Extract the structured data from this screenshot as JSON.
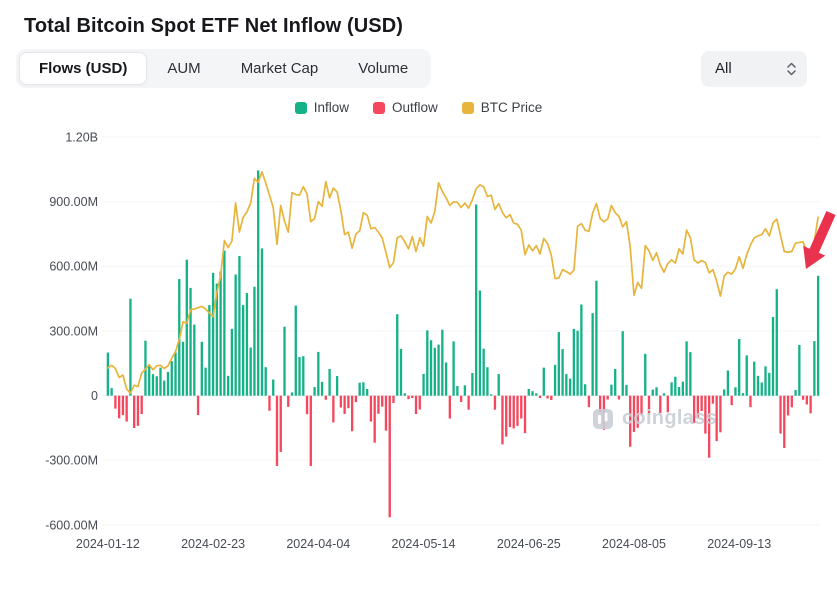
{
  "title": "Total Bitcoin Spot ETF Net Inflow (USD)",
  "tabs": [
    {
      "label": "Flows (USD)",
      "active": true
    },
    {
      "label": "AUM",
      "active": false
    },
    {
      "label": "Market Cap",
      "active": false
    },
    {
      "label": "Volume",
      "active": false
    }
  ],
  "filter": {
    "value": "All"
  },
  "legend": [
    {
      "label": "Inflow",
      "color": "#16b287"
    },
    {
      "label": "Outflow",
      "color": "#f5475d"
    },
    {
      "label": "BTC Price",
      "color": "#e7b43c"
    }
  ],
  "watermark": "coinglass",
  "chart_data": {
    "type": "bar+line",
    "title": "Total Bitcoin Spot ETF Net Inflow (USD)",
    "legend_position": "top",
    "grid": "horizontal-faint",
    "y_axis": {
      "unit": "USD",
      "min": -600,
      "max": 1200,
      "tick_values": [
        1200,
        900,
        600,
        300,
        0,
        -300,
        -600
      ],
      "ticks": [
        "1.20B",
        "900.00M",
        "600.00M",
        "300.00M",
        "0",
        "-300.00M",
        "-600.00M"
      ]
    },
    "x_axis": {
      "tick_labels": [
        "2024-01-12",
        "2024-02-23",
        "2024-04-04",
        "2024-05-14",
        "2024-06-25",
        "2024-08-05",
        "2024-09-13"
      ],
      "tick_indices": [
        0,
        28,
        56,
        84,
        112,
        140,
        168
      ]
    },
    "dates": [
      "2024-01-12",
      "2024-01-16",
      "2024-01-17",
      "2024-01-18",
      "2024-01-19",
      "2024-01-22",
      "2024-01-23",
      "2024-01-24",
      "2024-01-25",
      "2024-01-26",
      "2024-01-29",
      "2024-01-30",
      "2024-01-31",
      "2024-02-01",
      "2024-02-02",
      "2024-02-05",
      "2024-02-06",
      "2024-02-07",
      "2024-02-08",
      "2024-02-09",
      "2024-02-12",
      "2024-02-13",
      "2024-02-14",
      "2024-02-15",
      "2024-02-16",
      "2024-02-20",
      "2024-02-21",
      "2024-02-22",
      "2024-02-23",
      "2024-02-26",
      "2024-02-27",
      "2024-02-28",
      "2024-02-29",
      "2024-03-01",
      "2024-03-04",
      "2024-03-05",
      "2024-03-06",
      "2024-03-07",
      "2024-03-08",
      "2024-03-11",
      "2024-03-12",
      "2024-03-13",
      "2024-03-14",
      "2024-03-15",
      "2024-03-18",
      "2024-03-19",
      "2024-03-20",
      "2024-03-21",
      "2024-03-22",
      "2024-03-25",
      "2024-03-26",
      "2024-03-27",
      "2024-03-28",
      "2024-04-01",
      "2024-04-02",
      "2024-04-03",
      "2024-04-04",
      "2024-04-05",
      "2024-04-08",
      "2024-04-09",
      "2024-04-10",
      "2024-04-11",
      "2024-04-12",
      "2024-04-15",
      "2024-04-16",
      "2024-04-17",
      "2024-04-18",
      "2024-04-19",
      "2024-04-22",
      "2024-04-23",
      "2024-04-24",
      "2024-04-25",
      "2024-04-26",
      "2024-04-29",
      "2024-04-30",
      "2024-05-01",
      "2024-05-02",
      "2024-05-03",
      "2024-05-06",
      "2024-05-07",
      "2024-05-08",
      "2024-05-09",
      "2024-05-10",
      "2024-05-13",
      "2024-05-14",
      "2024-05-15",
      "2024-05-16",
      "2024-05-17",
      "2024-05-20",
      "2024-05-21",
      "2024-05-22",
      "2024-05-23",
      "2024-05-24",
      "2024-05-28",
      "2024-05-29",
      "2024-05-30",
      "2024-05-31",
      "2024-06-03",
      "2024-06-04",
      "2024-06-05",
      "2024-06-06",
      "2024-06-07",
      "2024-06-10",
      "2024-06-11",
      "2024-06-12",
      "2024-06-13",
      "2024-06-14",
      "2024-06-17",
      "2024-06-18",
      "2024-06-20",
      "2024-06-21",
      "2024-06-24",
      "2024-06-25",
      "2024-06-26",
      "2024-06-27",
      "2024-06-28",
      "2024-07-01",
      "2024-07-02",
      "2024-07-03",
      "2024-07-05",
      "2024-07-08",
      "2024-07-09",
      "2024-07-10",
      "2024-07-11",
      "2024-07-12",
      "2024-07-15",
      "2024-07-16",
      "2024-07-17",
      "2024-07-18",
      "2024-07-19",
      "2024-07-22",
      "2024-07-23",
      "2024-07-24",
      "2024-07-25",
      "2024-07-26",
      "2024-07-29",
      "2024-07-30",
      "2024-07-31",
      "2024-08-01",
      "2024-08-02",
      "2024-08-05",
      "2024-08-06",
      "2024-08-07",
      "2024-08-08",
      "2024-08-09",
      "2024-08-12",
      "2024-08-13",
      "2024-08-14",
      "2024-08-15",
      "2024-08-16",
      "2024-08-19",
      "2024-08-20",
      "2024-08-21",
      "2024-08-22",
      "2024-08-23",
      "2024-08-26",
      "2024-08-27",
      "2024-08-28",
      "2024-08-29",
      "2024-08-30",
      "2024-09-03",
      "2024-09-04",
      "2024-09-05",
      "2024-09-06",
      "2024-09-09",
      "2024-09-10",
      "2024-09-11",
      "2024-09-12",
      "2024-09-13",
      "2024-09-16",
      "2024-09-17",
      "2024-09-18",
      "2024-09-19",
      "2024-09-20",
      "2024-09-23",
      "2024-09-24",
      "2024-09-25",
      "2024-09-26",
      "2024-09-27",
      "2024-09-30",
      "2024-10-01",
      "2024-10-02",
      "2024-10-03",
      "2024-10-04",
      "2024-10-07",
      "2024-10-08",
      "2024-10-09",
      "2024-10-10",
      "2024-10-11",
      "2024-10-14"
    ],
    "series": [
      {
        "name": "Net Flow",
        "type": "bar",
        "unit": "USD millions",
        "positive_label": "Inflow",
        "negative_label": "Outflow",
        "positive_color": "#16b287",
        "negative_color": "#f5475d",
        "values": [
          200,
          35,
          -60,
          -105,
          -90,
          -120,
          450,
          -150,
          -140,
          -85,
          255,
          145,
          100,
          90,
          130,
          70,
          110,
          160,
          200,
          541,
          250,
          631,
          500,
          330,
          -90,
          250,
          130,
          420,
          570,
          520,
          576,
          673,
          92,
          310,
          562,
          648,
          420,
          476,
          223,
          505,
          1045,
          683,
          132,
          -70,
          75,
          -326,
          -261,
          320,
          -52,
          15,
          418,
          179,
          183,
          -86,
          -326,
          40,
          203,
          64,
          -19,
          124,
          -124,
          91,
          -55,
          -85,
          -58,
          -165,
          -30,
          60,
          62,
          31,
          -120,
          -218,
          -84,
          -51,
          -162,
          -564,
          -34,
          378,
          217,
          11,
          -16,
          -11,
          -85,
          -64,
          101,
          303,
          257,
          222,
          237,
          306,
          154,
          -106,
          252,
          45,
          -29,
          48,
          -65,
          105,
          887,
          488,
          218,
          132,
          6,
          -65,
          100,
          -226,
          -190,
          -146,
          -152,
          -140,
          -106,
          -174,
          31,
          21,
          11,
          -11,
          130,
          -13,
          -20,
          143,
          295,
          216,
          100,
          79,
          310,
          301,
          423,
          53,
          -53,
          383,
          533,
          -78,
          -158,
          -18,
          51,
          124,
          -18,
          299,
          50,
          -237,
          -168,
          -149,
          -91,
          194,
          -89,
          28,
          39,
          -81,
          11,
          -77,
          62,
          88,
          40,
          65,
          252,
          202,
          -127,
          -105,
          -71,
          -176,
          -288,
          -37,
          -211,
          -170,
          29,
          117,
          -44,
          39,
          263,
          12,
          187,
          -53,
          158,
          92,
          61,
          136,
          106,
          365,
          494,
          -176,
          -243,
          -92,
          -54,
          26,
          235,
          -19,
          -41,
          -82,
          253,
          556
        ]
      },
      {
        "name": "BTC Price",
        "type": "line",
        "unit": "USD thousands",
        "color": "#e7b43c",
        "values": [
          42.8,
          43.2,
          42.7,
          41.3,
          41.7,
          39.5,
          38.9,
          40.1,
          39.9,
          42.0,
          42.6,
          43.3,
          42.5,
          43.1,
          43.2,
          42.7,
          43.1,
          44.3,
          45.3,
          47.2,
          49.9,
          49.7,
          51.8,
          51.9,
          52.1,
          52.3,
          51.9,
          51.3,
          50.7,
          54.5,
          57.0,
          62.5,
          61.4,
          62.4,
          68.3,
          63.8,
          66.1,
          66.9,
          68.3,
          72.1,
          71.5,
          73.1,
          71.4,
          69.5,
          67.6,
          61.9,
          67.9,
          65.5,
          63.8,
          69.9,
          69.6,
          69.5,
          70.8,
          69.7,
          65.4,
          65.9,
          68.5,
          67.8,
          71.6,
          69.1,
          70.6,
          70.0,
          67.1,
          63.4,
          63.8,
          61.3,
          63.5,
          64.0,
          66.8,
          66.4,
          64.3,
          64.5,
          63.8,
          62.9,
          60.6,
          58.3,
          59.1,
          62.9,
          63.2,
          62.3,
          61.2,
          63.1,
          60.8,
          62.9,
          61.6,
          66.2,
          65.2,
          67.0,
          71.4,
          70.1,
          69.1,
          67.9,
          68.5,
          68.4,
          67.6,
          68.3,
          67.5,
          68.8,
          70.5,
          71.1,
          70.8,
          69.3,
          69.5,
          67.3,
          68.2,
          66.8,
          66.0,
          66.5,
          65.2,
          65.0,
          64.1,
          60.3,
          61.8,
          60.9,
          61.7,
          60.4,
          62.8,
          62.0,
          60.2,
          56.6,
          56.7,
          58.0,
          57.7,
          57.3,
          57.9,
          64.7,
          65.1,
          64.1,
          63.9,
          66.7,
          68.2,
          65.9,
          65.4,
          65.8,
          67.9,
          66.8,
          66.2,
          64.6,
          65.4,
          61.5,
          54.0,
          56.0,
          55.1,
          61.7,
          60.9,
          59.4,
          60.6,
          58.7,
          57.6,
          58.9,
          59.5,
          59.0,
          61.2,
          60.4,
          64.1,
          62.9,
          59.5,
          59.0,
          59.4,
          59.1,
          57.5,
          58.0,
          56.2,
          53.9,
          57.0,
          57.6,
          57.3,
          58.1,
          60.0,
          58.2,
          60.3,
          61.8,
          62.9,
          63.2,
          63.4,
          64.3,
          63.2,
          65.2,
          65.8,
          63.3,
          60.8,
          60.7,
          60.8,
          62.1,
          62.2,
          62.3,
          60.6,
          60.3,
          62.5,
          66.1
        ]
      }
    ],
    "price_axis_map": {
      "price_min": 38.5,
      "price_max": 73.5,
      "flow_min_musd": 0,
      "flow_max_musd": 1050
    },
    "annotation": {
      "type": "arrow",
      "color": "#e9324e"
    }
  }
}
